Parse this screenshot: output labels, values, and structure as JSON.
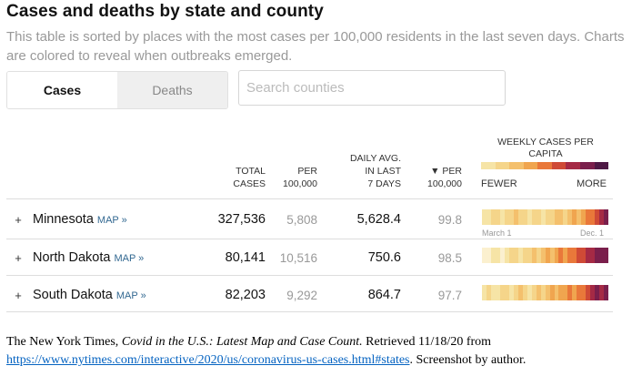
{
  "title": "Cases and deaths by state and county",
  "subtitle": "This table is sorted by places with the most cases per 100,000 residents in the last seven days. Charts are colored to reveal when outbreaks emerged.",
  "toggle": {
    "cases_label": "Cases",
    "deaths_label": "Deaths",
    "active": "Cases"
  },
  "search": {
    "placeholder": "Search counties"
  },
  "columns": {
    "total_cases_1": "Total",
    "total_cases_2": "cases",
    "per_1": "Per",
    "per_2": "100,000",
    "daily_1": "Daily avg.",
    "daily_2": "in last",
    "daily_3": "7 days",
    "per7_1": "▼ Per",
    "per7_2": "100,000",
    "weekly_title": "Weekly cases per capita",
    "fewer": "Fewer",
    "more": "More"
  },
  "legend_colors": [
    "#f6e4a6",
    "#f5d58a",
    "#f4c06d",
    "#f0a54f",
    "#e9783a",
    "#cf4a36",
    "#a52a45",
    "#7a1f4c",
    "#4e1945"
  ],
  "rows": [
    {
      "plus": "+",
      "state": "Minnesota",
      "map": "MAP »",
      "total_cases": "327,536",
      "per_100k": "5,808",
      "daily_avg": "5,628.4",
      "per_100k_7d": "99.8",
      "spark": [
        "#f6e4a6",
        "#f6e4a6",
        "#f5d58a",
        "#f5d58a",
        "#f6e4a6",
        "#f5d58a",
        "#f5d58a",
        "#f4c06d",
        "#f5d58a",
        "#f5d58a",
        "#f6e4a6",
        "#f5d58a",
        "#f5d58a",
        "#f6e4a6",
        "#f5d58a",
        "#f5d58a",
        "#f4c06d",
        "#f4c06d",
        "#f5d58a",
        "#f4c06d",
        "#f0a54f",
        "#f4c06d",
        "#f0a54f",
        "#e9783a",
        "#e9783a",
        "#cf4a36",
        "#a52a45",
        "#7a1f4c"
      ]
    },
    {
      "plus": "+",
      "state": "North Dakota",
      "map": "MAP »",
      "total_cases": "80,141",
      "per_100k": "10,516",
      "daily_avg": "750.6",
      "per_100k_7d": "98.5",
      "spark": [
        "#fbf0cf",
        "#fbf0cf",
        "#f6e4a6",
        "#f6e4a6",
        "#fbf0cf",
        "#f6e4a6",
        "#f5d58a",
        "#f5d58a",
        "#f6e4a6",
        "#f5d58a",
        "#f5d58a",
        "#f4c06d",
        "#f5d58a",
        "#f4c06d",
        "#f0a54f",
        "#f4c06d",
        "#f0a54f",
        "#e9783a",
        "#f0a54f",
        "#e9783a",
        "#e9783a",
        "#cf4a36",
        "#cf4a36",
        "#a52a45",
        "#a52a45",
        "#7a1f4c",
        "#7a1f4c",
        "#7a1f4c"
      ]
    },
    {
      "plus": "+",
      "state": "South Dakota",
      "map": "MAP »",
      "total_cases": "82,203",
      "per_100k": "9,292",
      "daily_avg": "864.7",
      "per_100k_7d": "97.7",
      "spark": [
        "#f6e4a6",
        "#f5d58a",
        "#f6e4a6",
        "#f6e4a6",
        "#f5d58a",
        "#f5d58a",
        "#f6e4a6",
        "#f5d58a",
        "#f4c06d",
        "#f5d58a",
        "#f6e4a6",
        "#f5d58a",
        "#f4c06d",
        "#f5d58a",
        "#f4c06d",
        "#f0a54f",
        "#f4c06d",
        "#f0a54f",
        "#f0a54f",
        "#e9783a",
        "#f0a54f",
        "#e9783a",
        "#e9783a",
        "#cf4a36",
        "#a52a45",
        "#7a1f4c",
        "#a52a45",
        "#7a1f4c"
      ]
    }
  ],
  "axis": {
    "start": "March 1",
    "end": "Dec. 1"
  },
  "caption": {
    "part1": "The New York Times, ",
    "italic": "Covid in the U.S.: Latest Map and Case Count.",
    "part2": " Retrieved 11/18/20 from",
    "link": "https://www.nytimes.com/interactive/2020/us/coronavirus-us-cases.html#states",
    "part3": ". Screenshot by author."
  }
}
